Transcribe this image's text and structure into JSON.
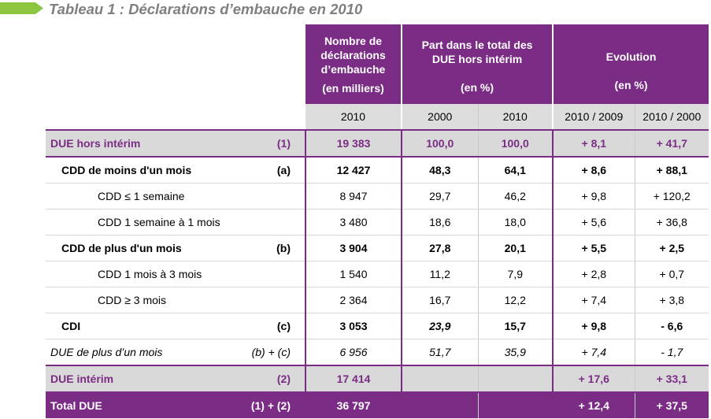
{
  "title": "Tableau 1 : Déclarations d’embauche en 2010",
  "header": {
    "col_nombre_lines": [
      "Nombre de",
      "déclarations",
      "d’embauche"
    ],
    "col_nombre_unit": "(en milliers)",
    "col_part_lines": [
      "Part dans le total des",
      "DUE hors intérim"
    ],
    "col_part_unit": "(en %)",
    "col_evol": "Evolution",
    "col_evol_unit": "(en %)",
    "years": [
      "2010",
      "2000",
      "2010",
      "2010 / 2009",
      "2010 / 2000"
    ]
  },
  "rows": [
    {
      "label": "DUE hors intérim",
      "tag": "(1)",
      "values": [
        "19 383",
        "100,0",
        "100,0",
        "+ 8,1",
        "+ 41,7"
      ]
    },
    {
      "label": "CDD de moins d'un mois",
      "tag": "(a)",
      "values": [
        "12 427",
        "48,3",
        "64,1",
        "+ 8,6",
        "+ 88,1"
      ]
    },
    {
      "label": "CDD ≤ 1 semaine",
      "tag": "",
      "values": [
        "8 947",
        "29,7",
        "46,2",
        "+ 9,8",
        "+ 120,2"
      ]
    },
    {
      "label": "CDD 1 semaine à 1 mois",
      "tag": "",
      "values": [
        "3 480",
        "18,6",
        "18,0",
        "+ 5,6",
        "+ 36,8"
      ]
    },
    {
      "label": "CDD de plus d'un mois",
      "tag": "(b)",
      "values": [
        "3 904",
        "27,8",
        "20,1",
        "+ 5,5",
        "+ 2,5"
      ]
    },
    {
      "label": "CDD 1 mois à 3 mois",
      "tag": "",
      "values": [
        "1 540",
        "11,2",
        "7,9",
        "+ 2,8",
        "+ 0,7"
      ]
    },
    {
      "label": "CDD ≥ 3 mois",
      "tag": "",
      "values": [
        "2 364",
        "16,7",
        "12,2",
        "+ 7,4",
        "+ 3,8"
      ]
    },
    {
      "label": "CDI",
      "tag": "(c)",
      "values": [
        "3 053",
        "23,9",
        "15,7",
        "+ 9,8",
        "- 6,6"
      ]
    },
    {
      "label": "DUE de plus d’un mois",
      "tag": "(b) + (c)",
      "values": [
        "6 956",
        "51,7",
        "35,9",
        "+ 7,4",
        "- 1,7"
      ]
    },
    {
      "label": "DUE intérim",
      "tag": "(2)",
      "values": [
        "17 414",
        "",
        "",
        "+ 17,6",
        "+ 33,1"
      ]
    },
    {
      "label": "Total DUE",
      "tag": "(1) + (2)",
      "values": [
        "36 797",
        "",
        "",
        "+ 12,4",
        "+ 37,5"
      ]
    }
  ],
  "colors": {
    "accent": "#7b2c85",
    "header_grey": "#dddddd",
    "title_grey": "#7f7f7f",
    "arrow_green": "#8cc63f"
  }
}
